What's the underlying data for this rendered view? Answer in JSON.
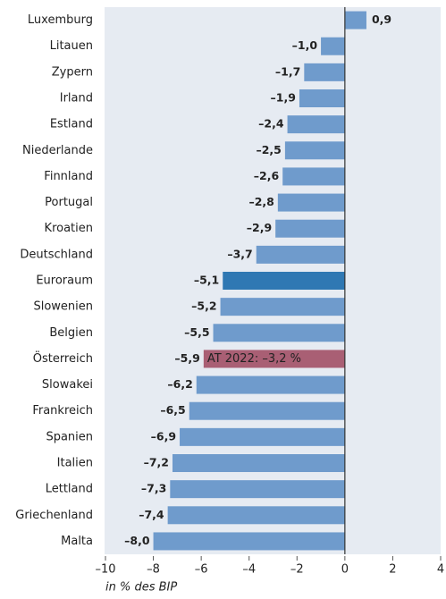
{
  "chart_data": {
    "type": "barh",
    "categories": [
      "Luxemburg",
      "Litauen",
      "Zypern",
      "Irland",
      "Estland",
      "Niederlande",
      "Finnland",
      "Portugal",
      "Kroatien",
      "Deutschland",
      "Euroraum",
      "Slowenien",
      "Belgien",
      "Österreich",
      "Slowakei",
      "Frankreich",
      "Spanien",
      "Italien",
      "Lettland",
      "Griechenland",
      "Malta"
    ],
    "values": [
      0.9,
      -1.0,
      -1.7,
      -1.9,
      -2.4,
      -2.5,
      -2.6,
      -2.8,
      -2.9,
      -3.7,
      -5.1,
      -5.2,
      -5.5,
      -5.9,
      -6.2,
      -6.5,
      -6.9,
      -7.2,
      -7.3,
      -7.4,
      -8.0
    ],
    "value_labels": [
      "0,9",
      "–1,0",
      "–1,7",
      "–1,9",
      "–2,4",
      "–2,5",
      "–2,6",
      "–2,8",
      "–2,9",
      "–3,7",
      "–5,1",
      "–5,2",
      "–5,5",
      "–5,9",
      "–6,2",
      "–6,5",
      "–6,9",
      "–7,2",
      "–7,3",
      "–7,4",
      "–8,0"
    ],
    "colors": [
      "#6f9bcc",
      "#6f9bcc",
      "#6f9bcc",
      "#6f9bcc",
      "#6f9bcc",
      "#6f9bcc",
      "#6f9bcc",
      "#6f9bcc",
      "#6f9bcc",
      "#6f9bcc",
      "#2f78b3",
      "#6f9bcc",
      "#6f9bcc",
      "#a95f74",
      "#6f9bcc",
      "#6f9bcc",
      "#6f9bcc",
      "#6f9bcc",
      "#6f9bcc",
      "#6f9bcc",
      "#6f9bcc"
    ],
    "annotations": [
      {
        "category": 13,
        "text": "AT 2022: –3,2 %"
      }
    ],
    "xlabel": "in % des BIP",
    "xlim": [
      -10,
      4
    ],
    "xticks": [
      {
        "value": -10,
        "label": "–10"
      },
      {
        "value": -8,
        "label": "–8"
      },
      {
        "value": -6,
        "label": "–6"
      },
      {
        "value": -4,
        "label": "–4"
      },
      {
        "value": -2,
        "label": "–2"
      },
      0,
      2,
      4
    ]
  }
}
